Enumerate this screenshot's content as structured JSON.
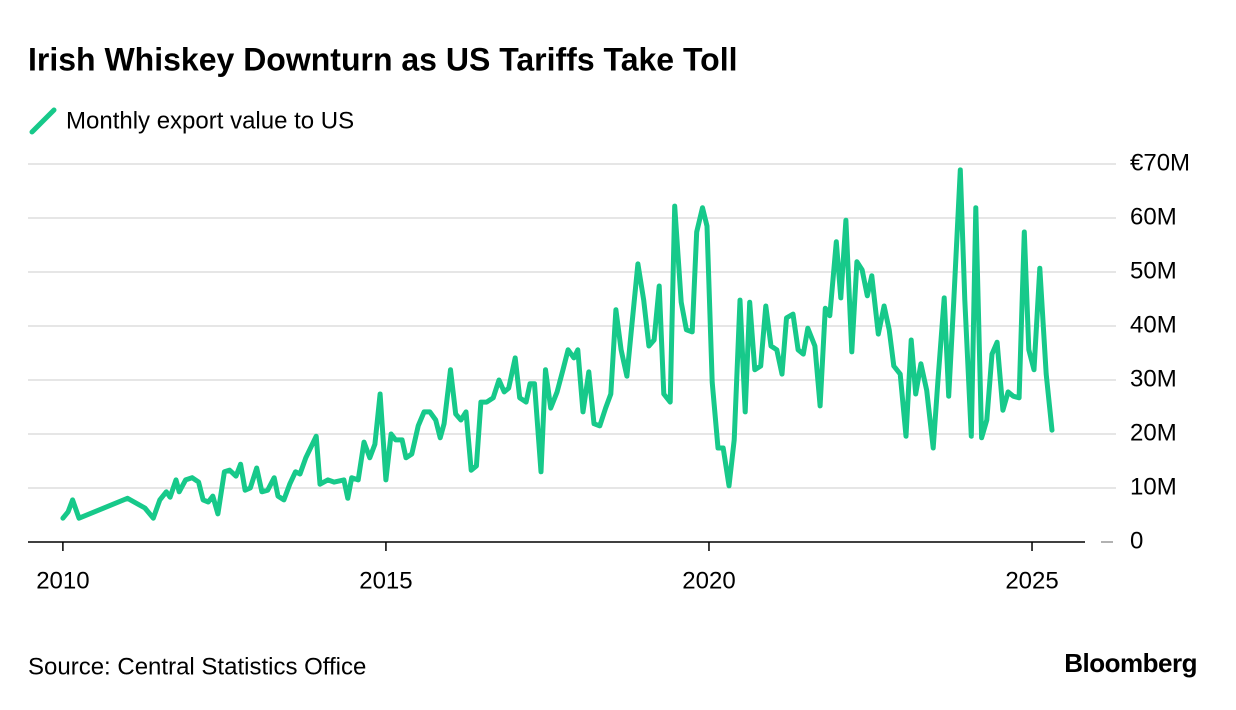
{
  "chart_data": {
    "type": "line",
    "title": "Irish Whiskey Downturn as US Tariffs Take Toll",
    "source": "Source: Central Statistics Office",
    "brand": "Bloomberg",
    "xlim": [
      2009.46,
      2025.82
    ],
    "xticks": [
      2010,
      2015,
      2020,
      2025
    ],
    "ylim": [
      0,
      70
    ],
    "yticks": [
      0,
      {
        "value": 10,
        "label": "10M"
      },
      {
        "value": 20,
        "label": "20M"
      },
      {
        "value": 30,
        "label": "30M"
      },
      {
        "value": 40,
        "label": "40M"
      },
      {
        "value": 50,
        "label": "50M"
      },
      {
        "value": 60,
        "label": "60M"
      },
      {
        "value": 70,
        "label": "€70M"
      }
    ],
    "grid": true,
    "x": [
      2010.0,
      2010.08,
      2010.15,
      2010.25,
      2011.0,
      2011.27,
      2011.4,
      2011.5,
      2011.6,
      2011.66,
      2011.75,
      2011.8,
      2011.9,
      2012.0,
      2012.1,
      2012.17,
      2012.25,
      2012.32,
      2012.4,
      2012.5,
      2012.58,
      2012.68,
      2012.75,
      2012.82,
      2012.9,
      2013.0,
      2013.08,
      2013.17,
      2013.27,
      2013.33,
      2013.42,
      2013.51,
      2013.6,
      2013.67,
      2013.76,
      2013.92,
      2013.98,
      2014.1,
      2014.2,
      2014.35,
      2014.41,
      2014.47,
      2014.57,
      2014.66,
      2014.75,
      2014.83,
      2014.91,
      2015.0,
      2015.08,
      2015.15,
      2015.25,
      2015.31,
      2015.4,
      2015.5,
      2015.59,
      2015.68,
      2015.77,
      2015.84,
      2015.9,
      2016.0,
      2016.08,
      2016.16,
      2016.24,
      2016.32,
      2016.4,
      2016.47,
      2016.56,
      2016.66,
      2016.75,
      2016.83,
      2016.9,
      2017.0,
      2017.07,
      2017.17,
      2017.23,
      2017.3,
      2017.4,
      2017.47,
      2017.55,
      2017.65,
      2017.74,
      2017.82,
      2017.91,
      2017.97,
      2018.05,
      2018.14,
      2018.22,
      2018.31,
      2018.4,
      2018.48,
      2018.56,
      2018.64,
      2018.73,
      2018.8,
      2018.9,
      2018.99,
      2019.07,
      2019.15,
      2019.23,
      2019.3,
      2019.4,
      2019.47,
      2019.57,
      2019.65,
      2019.74,
      2019.81,
      2019.9,
      2019.97,
      2020.05,
      2020.14,
      2020.22,
      2020.31,
      2020.39,
      2020.48,
      2020.56,
      2020.63,
      2020.71,
      2020.8,
      2020.88,
      2020.96,
      2021.05,
      2021.13,
      2021.2,
      2021.3,
      2021.38,
      2021.46,
      2021.53,
      2021.64,
      2021.72,
      2021.8,
      2021.87,
      2021.97,
      2022.04,
      2022.12,
      2022.21,
      2022.29,
      2022.37,
      2022.45,
      2022.52,
      2022.62,
      2022.71,
      2022.79,
      2022.86,
      2022.96,
      2023.05,
      2023.13,
      2023.2,
      2023.28,
      2023.37,
      2023.47,
      2023.54,
      2023.64,
      2023.71,
      2023.79,
      2023.89,
      2023.96,
      2024.06,
      2024.13,
      2024.22,
      2024.3,
      2024.38,
      2024.46,
      2024.55,
      2024.63,
      2024.71,
      2024.8,
      2024.88,
      2024.95,
      2025.03,
      2025.12,
      2025.22,
      2025.31
    ],
    "series": [
      {
        "name": "Monthly export value to US",
        "color": "#17c98a",
        "values": [
          4.4,
          5.6,
          7.8,
          4.4,
          8.1,
          6.3,
          4.4,
          7.8,
          9.3,
          8.3,
          11.5,
          9.3,
          11.5,
          11.9,
          11.1,
          7.8,
          7.4,
          8.5,
          5.2,
          13.0,
          13.3,
          12.2,
          14.4,
          9.6,
          10.0,
          13.7,
          9.3,
          9.6,
          11.9,
          8.5,
          7.8,
          10.7,
          13.0,
          12.6,
          15.6,
          19.6,
          10.7,
          11.5,
          11.1,
          11.5,
          8.1,
          11.9,
          11.5,
          18.5,
          15.6,
          18.1,
          27.4,
          11.5,
          20.0,
          18.9,
          18.9,
          15.6,
          16.3,
          21.5,
          24.1,
          24.1,
          22.6,
          19.3,
          21.9,
          31.9,
          23.7,
          22.6,
          24.1,
          13.3,
          14.1,
          25.9,
          25.9,
          26.7,
          30.0,
          27.8,
          28.5,
          34.1,
          26.7,
          25.9,
          29.3,
          29.3,
          13.0,
          31.9,
          24.8,
          27.8,
          31.9,
          35.6,
          34.1,
          35.6,
          24.1,
          31.5,
          21.9,
          21.5,
          24.8,
          27.4,
          43.0,
          35.6,
          30.7,
          39.3,
          51.5,
          44.8,
          36.3,
          37.4,
          47.4,
          27.4,
          25.9,
          62.2,
          44.4,
          39.3,
          38.9,
          57.4,
          61.9,
          58.5,
          29.6,
          17.4,
          17.4,
          10.4,
          18.9,
          44.8,
          24.1,
          44.4,
          31.9,
          32.6,
          43.7,
          36.3,
          35.6,
          31.1,
          41.5,
          42.2,
          35.6,
          34.8,
          39.6,
          36.3,
          25.2,
          43.3,
          41.9,
          55.6,
          45.2,
          59.6,
          35.2,
          51.9,
          50.4,
          45.6,
          49.3,
          38.5,
          43.7,
          39.3,
          32.6,
          31.1,
          19.6,
          37.4,
          27.4,
          33.0,
          28.1,
          17.4,
          29.3,
          45.2,
          27.0,
          44.8,
          68.9,
          44.8,
          19.6,
          61.9,
          19.3,
          22.6,
          34.8,
          37.0,
          24.4,
          27.8,
          27.0,
          26.7,
          57.4,
          35.6,
          31.9,
          50.7,
          31.1,
          20.7
        ]
      }
    ]
  }
}
